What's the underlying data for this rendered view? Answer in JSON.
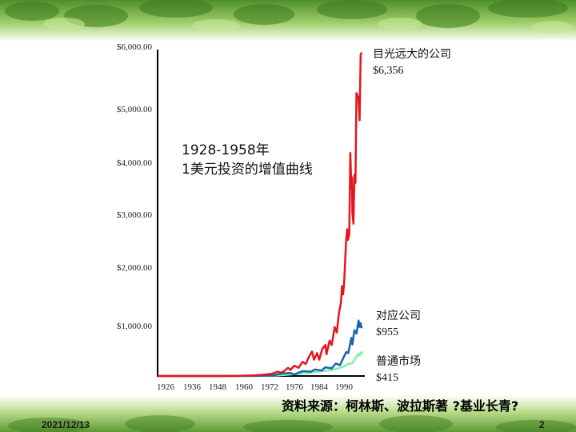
{
  "slide": {
    "date": "2021/12/13",
    "page": "2",
    "source": "资料来源：柯林斯、波拉斯著 ?基业长青?"
  },
  "annotation": {
    "line1": "1928-1958年",
    "line2": "1美元投资的增值曲线"
  },
  "series_labels": [
    {
      "name": "目光远大的公司",
      "value": "$6,356",
      "color": "#e8141b"
    },
    {
      "name": "对应公司",
      "value": "$955",
      "color": "#1764b0"
    },
    {
      "name": "普通市场",
      "value": "$415",
      "color": "#7ff0a6"
    }
  ],
  "chart_data": {
    "type": "line",
    "title": "",
    "xlabel": "",
    "ylabel": "",
    "x_ticks": [
      "1926",
      "1936",
      "1948",
      "1960",
      "1972",
      "1976",
      "1984",
      "1990"
    ],
    "y_ticks": [
      "$6,000.00",
      "$5,000.00",
      "$4,000.00",
      "$3,000.00",
      "$2,000.00",
      "$1,000.00"
    ],
    "ylim": [
      0,
      6000
    ],
    "grid": false,
    "series": [
      {
        "name": "目光远大的公司",
        "color": "#e8141b",
        "points": [
          [
            0,
            0
          ],
          [
            0.3,
            0
          ],
          [
            0.4,
            3
          ],
          [
            0.46,
            10
          ],
          [
            0.5,
            20
          ],
          [
            0.55,
            40
          ],
          [
            0.58,
            80
          ],
          [
            0.6,
            60
          ],
          [
            0.62,
            120
          ],
          [
            0.63,
            150
          ],
          [
            0.64,
            110
          ],
          [
            0.66,
            190
          ],
          [
            0.68,
            150
          ],
          [
            0.7,
            260
          ],
          [
            0.715,
            220
          ],
          [
            0.73,
            350
          ],
          [
            0.745,
            450
          ],
          [
            0.755,
            300
          ],
          [
            0.77,
            420
          ],
          [
            0.78,
            300
          ],
          [
            0.795,
            500
          ],
          [
            0.81,
            570
          ],
          [
            0.815,
            400
          ],
          [
            0.83,
            650
          ],
          [
            0.84,
            570
          ],
          [
            0.855,
            900
          ],
          [
            0.865,
            800
          ],
          [
            0.875,
            1150
          ],
          [
            0.885,
            1350
          ],
          [
            0.89,
            1650
          ],
          [
            0.895,
            1500
          ],
          [
            0.9,
            1700
          ],
          [
            0.91,
            2500
          ],
          [
            0.915,
            2700
          ],
          [
            0.918,
            2500
          ],
          [
            0.925,
            2600
          ],
          [
            0.93,
            4100
          ],
          [
            0.935,
            3450
          ],
          [
            0.938,
            3650
          ],
          [
            0.94,
            3000
          ],
          [
            0.945,
            2800
          ],
          [
            0.95,
            3700
          ],
          [
            0.955,
            3550
          ],
          [
            0.96,
            5200
          ],
          [
            0.97,
            5100
          ],
          [
            0.975,
            4700
          ],
          [
            0.98,
            5900
          ],
          [
            0.985,
            5950
          ]
        ]
      },
      {
        "name": "对应公司",
        "color": "#1764b0",
        "points": [
          [
            0,
            0
          ],
          [
            0.4,
            0
          ],
          [
            0.5,
            5
          ],
          [
            0.56,
            15
          ],
          [
            0.6,
            45
          ],
          [
            0.64,
            55
          ],
          [
            0.66,
            30
          ],
          [
            0.7,
            90
          ],
          [
            0.74,
            80
          ],
          [
            0.76,
            120
          ],
          [
            0.79,
            100
          ],
          [
            0.81,
            160
          ],
          [
            0.84,
            140
          ],
          [
            0.86,
            230
          ],
          [
            0.88,
            200
          ],
          [
            0.89,
            280
          ],
          [
            0.91,
            440
          ],
          [
            0.92,
            420
          ],
          [
            0.935,
            700
          ],
          [
            0.94,
            580
          ],
          [
            0.95,
            840
          ],
          [
            0.96,
            780
          ],
          [
            0.97,
            1020
          ],
          [
            0.975,
            900
          ],
          [
            0.98,
            970
          ],
          [
            0.985,
            880
          ]
        ]
      },
      {
        "name": "普通市场",
        "color": "#7ff0a6",
        "points": [
          [
            0,
            0
          ],
          [
            0.4,
            0
          ],
          [
            0.5,
            3
          ],
          [
            0.58,
            12
          ],
          [
            0.64,
            28
          ],
          [
            0.7,
            45
          ],
          [
            0.76,
            70
          ],
          [
            0.8,
            90
          ],
          [
            0.84,
            110
          ],
          [
            0.88,
            150
          ],
          [
            0.9,
            175
          ],
          [
            0.92,
            220
          ],
          [
            0.94,
            240
          ],
          [
            0.955,
            330
          ],
          [
            0.97,
            410
          ],
          [
            0.975,
            380
          ],
          [
            0.985,
            440
          ],
          [
            0.99,
            410
          ]
        ]
      }
    ]
  }
}
